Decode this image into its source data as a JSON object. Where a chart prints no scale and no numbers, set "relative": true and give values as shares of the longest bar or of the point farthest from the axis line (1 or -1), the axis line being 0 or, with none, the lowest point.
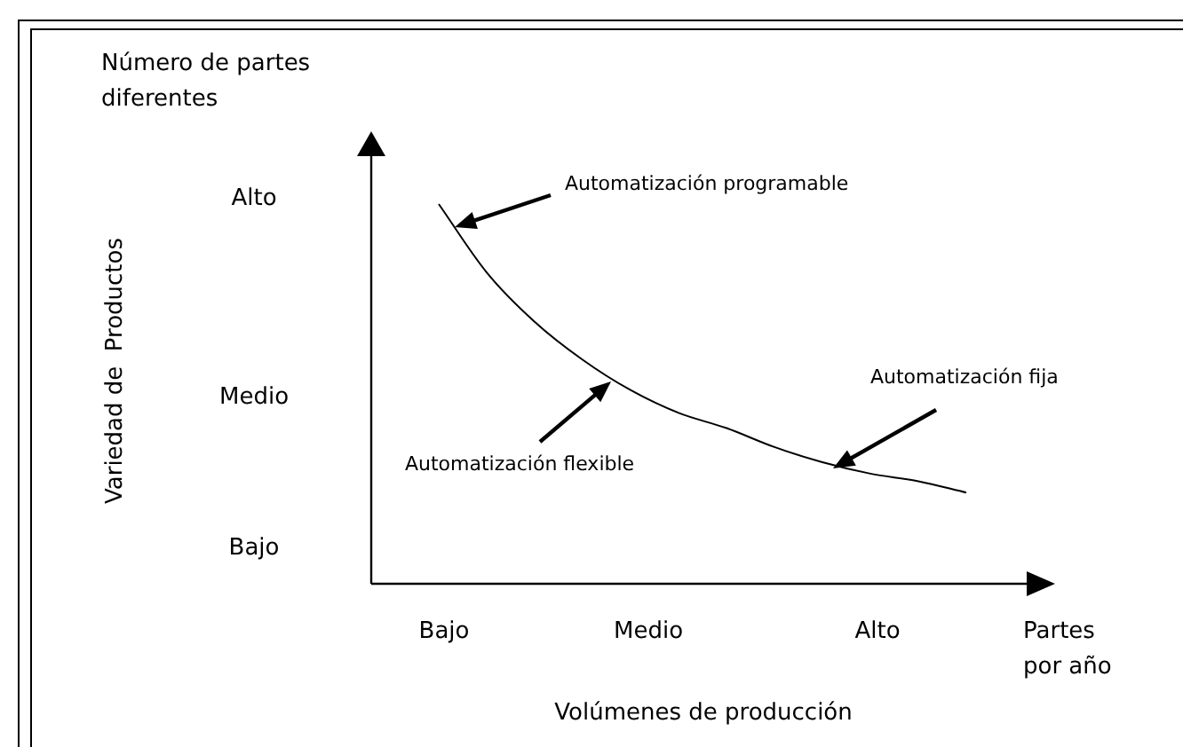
{
  "chart_data": {
    "type": "line",
    "relative": true,
    "categories": [
      null,
      null,
      null,
      null,
      null,
      null,
      null,
      null,
      null,
      null,
      null,
      null
    ],
    "series": [
      {
        "color": "#000000",
        "values": [
          1,
          0.82,
          0.69,
          0.59,
          0.51,
          0.45,
          0.41,
          0.36,
          0.32,
          0.29,
          0.27,
          0.24
        ]
      }
    ],
    "marker": "none",
    "line_style": "solid",
    "legend": false,
    "annotations": [
      "Número de partes diferentes",
      "Partes por año",
      "Alto",
      "Medio",
      "Bajo",
      "Bajo",
      "Medio",
      "Alto",
      "Automatización programable",
      "Automatización flexible",
      "Automatización fija",
      "Volúmenes de producción",
      "Variedad de  Productos"
    ]
  }
}
